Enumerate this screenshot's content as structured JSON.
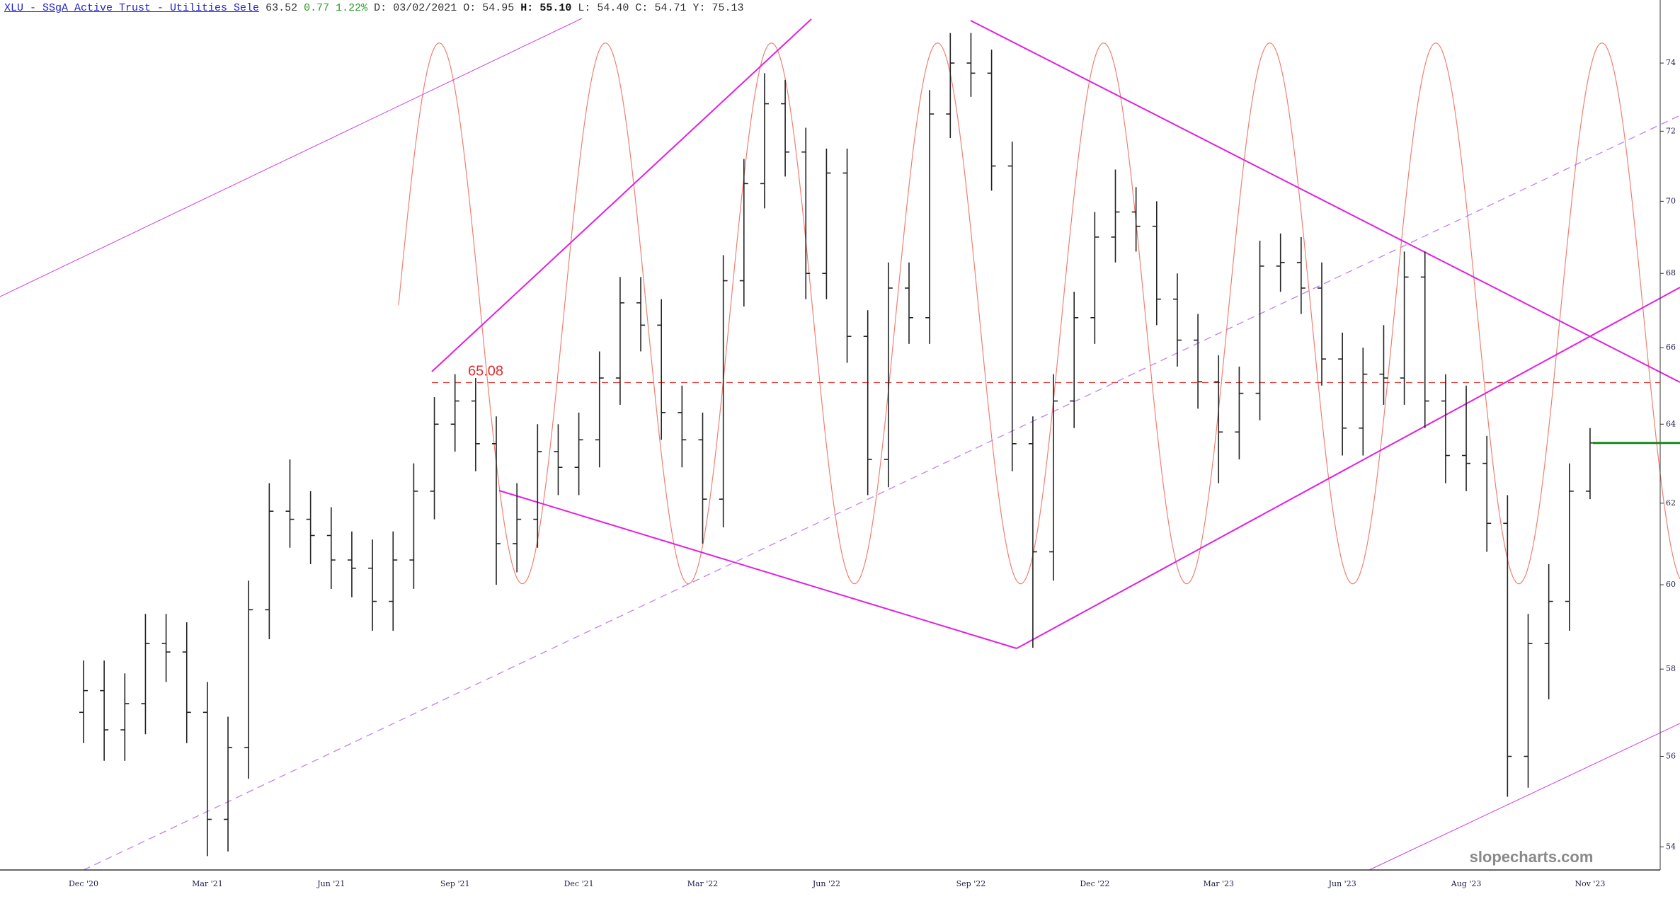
{
  "header": {
    "title": "XLU - SSgA Active Trust - Utilities Sele",
    "last": "63.52",
    "change": "0.77",
    "change_pct": "1.22%",
    "fields": [
      {
        "label": "D:",
        "value": "03/02/2021"
      },
      {
        "label": "O:",
        "value": "54.95"
      },
      {
        "label": "H:",
        "value": "55.10"
      },
      {
        "label": "L:",
        "value": "54.40"
      },
      {
        "label": "C:",
        "value": "54.71"
      },
      {
        "label": "Y:",
        "value": "75.13"
      }
    ]
  },
  "watermark": "slopecharts.com",
  "chart_data": {
    "type": "ohlc",
    "log_scale": true,
    "color": "#222222",
    "last_price_color": "#1a8a1a",
    "categories": [
      "Dec '20",
      null,
      null,
      null,
      null,
      null,
      "Mar '21",
      null,
      null,
      null,
      null,
      null,
      "Jun '21",
      null,
      null,
      null,
      null,
      null,
      "Sep '21",
      null,
      null,
      null,
      null,
      null,
      "Dec '21",
      null,
      null,
      null,
      null,
      null,
      "Mar '22",
      null,
      null,
      null,
      null,
      null,
      "Jun '22",
      null,
      null,
      null,
      null,
      null,
      null,
      "Sep '22",
      null,
      null,
      null,
      null,
      null,
      "Dec '22",
      null,
      null,
      null,
      null,
      null,
      "Mar '23",
      null,
      null,
      null,
      null,
      null,
      "Jun '23",
      null,
      null,
      null,
      null,
      null,
      "Aug '23",
      null,
      null,
      null,
      null,
      null,
      "Nov '23"
    ],
    "open": [
      57.0,
      57.5,
      56.6,
      57.2,
      58.6,
      58.4,
      57.0,
      54.6,
      56.2,
      59.4,
      61.8,
      61.6,
      61.2,
      60.6,
      60.4,
      59.6,
      60.6,
      62.3,
      64.0,
      64.6,
      63.5,
      61.0,
      61.6,
      63.3,
      62.9,
      63.6,
      65.2,
      67.2,
      66.6,
      64.3,
      63.6,
      62.1,
      67.8,
      70.5,
      72.8,
      71.4,
      68.0,
      70.8,
      66.3,
      63.1,
      67.6,
      66.8,
      72.5,
      74.0,
      73.7,
      71.0,
      63.5,
      60.8,
      64.6,
      66.8,
      69.0,
      69.7,
      69.3,
      67.3,
      66.2,
      65.1,
      63.8,
      64.8,
      68.2,
      68.3,
      67.6,
      65.7,
      63.9,
      65.3,
      65.2,
      67.9,
      64.6,
      63.2,
      63.0,
      61.5,
      56.0,
      58.6,
      59.6,
      62.3
    ],
    "high": [
      58.2,
      58.2,
      57.9,
      59.3,
      59.3,
      59.1,
      57.7,
      56.9,
      60.1,
      62.5,
      63.1,
      62.3,
      61.9,
      61.3,
      61.1,
      61.3,
      63.0,
      64.7,
      65.3,
      65.2,
      64.2,
      62.5,
      64.0,
      64.0,
      64.3,
      65.9,
      67.9,
      67.9,
      67.3,
      65.0,
      64.3,
      68.5,
      71.2,
      73.7,
      73.5,
      72.1,
      71.5,
      71.5,
      67.0,
      68.3,
      68.3,
      73.2,
      74.9,
      74.9,
      74.4,
      71.7,
      64.2,
      65.3,
      67.5,
      69.7,
      70.9,
      70.4,
      70.0,
      68.0,
      66.9,
      65.8,
      65.5,
      68.9,
      69.1,
      69.0,
      68.3,
      66.4,
      66.0,
      66.6,
      68.6,
      68.6,
      65.3,
      65.0,
      63.7,
      62.2,
      59.3,
      60.5,
      63.0,
      63.9
    ],
    "low": [
      56.3,
      55.9,
      55.9,
      56.5,
      57.7,
      56.3,
      53.8,
      53.9,
      55.5,
      58.7,
      60.9,
      60.5,
      59.9,
      59.7,
      58.9,
      58.9,
      59.9,
      61.6,
      63.3,
      62.8,
      60.0,
      60.3,
      60.9,
      62.2,
      62.2,
      62.9,
      64.5,
      65.9,
      63.6,
      62.9,
      61.0,
      61.4,
      67.1,
      69.8,
      70.7,
      67.3,
      67.3,
      65.6,
      62.2,
      62.4,
      66.1,
      66.1,
      71.8,
      73.0,
      70.3,
      62.8,
      58.5,
      60.1,
      63.9,
      66.1,
      68.3,
      68.6,
      66.6,
      65.5,
      64.4,
      62.5,
      63.1,
      64.1,
      67.5,
      66.9,
      65.0,
      63.2,
      63.2,
      64.5,
      64.5,
      63.9,
      62.5,
      62.3,
      60.8,
      55.1,
      55.3,
      57.3,
      58.9,
      62.1
    ],
    "close": [
      57.5,
      56.6,
      57.2,
      58.6,
      58.4,
      57.0,
      54.6,
      56.2,
      59.4,
      61.8,
      61.6,
      61.2,
      60.6,
      60.4,
      59.6,
      60.6,
      62.3,
      64.0,
      64.6,
      63.5,
      61.0,
      61.6,
      63.3,
      62.9,
      63.6,
      65.2,
      67.2,
      66.6,
      64.3,
      63.6,
      62.1,
      67.8,
      70.5,
      72.8,
      71.4,
      68.0,
      70.8,
      66.3,
      63.1,
      67.6,
      66.8,
      72.5,
      74.0,
      73.7,
      71.0,
      63.5,
      60.8,
      64.6,
      66.8,
      69.0,
      69.7,
      69.3,
      67.3,
      66.2,
      65.1,
      63.8,
      64.8,
      68.2,
      68.3,
      67.6,
      65.7,
      63.9,
      65.3,
      65.2,
      67.9,
      64.6,
      63.2,
      63.0,
      61.5,
      56.0,
      58.6,
      59.6,
      62.3,
      63.52
    ],
    "hlines": [
      {
        "value": 65.08,
        "color": "#e03030"
      }
    ],
    "ylim": [
      53.5,
      75.9
    ],
    "yticks": [
      54,
      56,
      58,
      60,
      62,
      64,
      66,
      68,
      70,
      72,
      74
    ]
  }
}
